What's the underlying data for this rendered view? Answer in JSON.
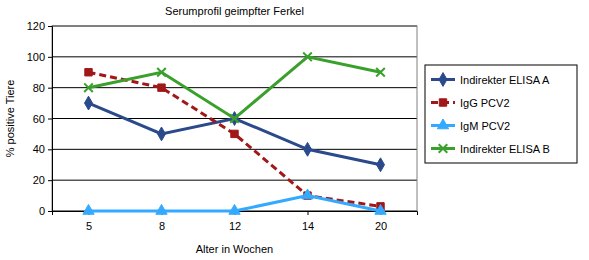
{
  "chart_data": {
    "type": "line",
    "title": "Serumprofil geimpfter Ferkel",
    "x_label": "Alter in Wochen",
    "y_label": "% positive Tiere",
    "categories": [
      "5",
      "8",
      "12",
      "14",
      "20"
    ],
    "series": [
      {
        "name": "Indirekter ELISA A",
        "color": "#2a4a8c",
        "marker": "diamond",
        "line_style": "solid",
        "values": [
          70,
          50,
          60,
          40,
          30
        ]
      },
      {
        "name": "IgG PCV2",
        "color": "#a01818",
        "marker": "square",
        "line_style": "dashed",
        "values": [
          90,
          80,
          50,
          10,
          3
        ]
      },
      {
        "name": "IgM PCV2",
        "color": "#33aaff",
        "marker": "triangle",
        "line_style": "solid",
        "values": [
          0,
          0,
          0,
          10,
          0
        ]
      },
      {
        "name": "Indirekter ELISA B",
        "color": "#3aa02c",
        "marker": "x",
        "line_style": "solid",
        "values": [
          80,
          90,
          60,
          100,
          90
        ]
      }
    ],
    "ylim": [
      0,
      120
    ],
    "yticks": [
      0,
      20,
      40,
      60,
      80,
      100,
      120
    ],
    "grid": true,
    "legend": "right"
  }
}
